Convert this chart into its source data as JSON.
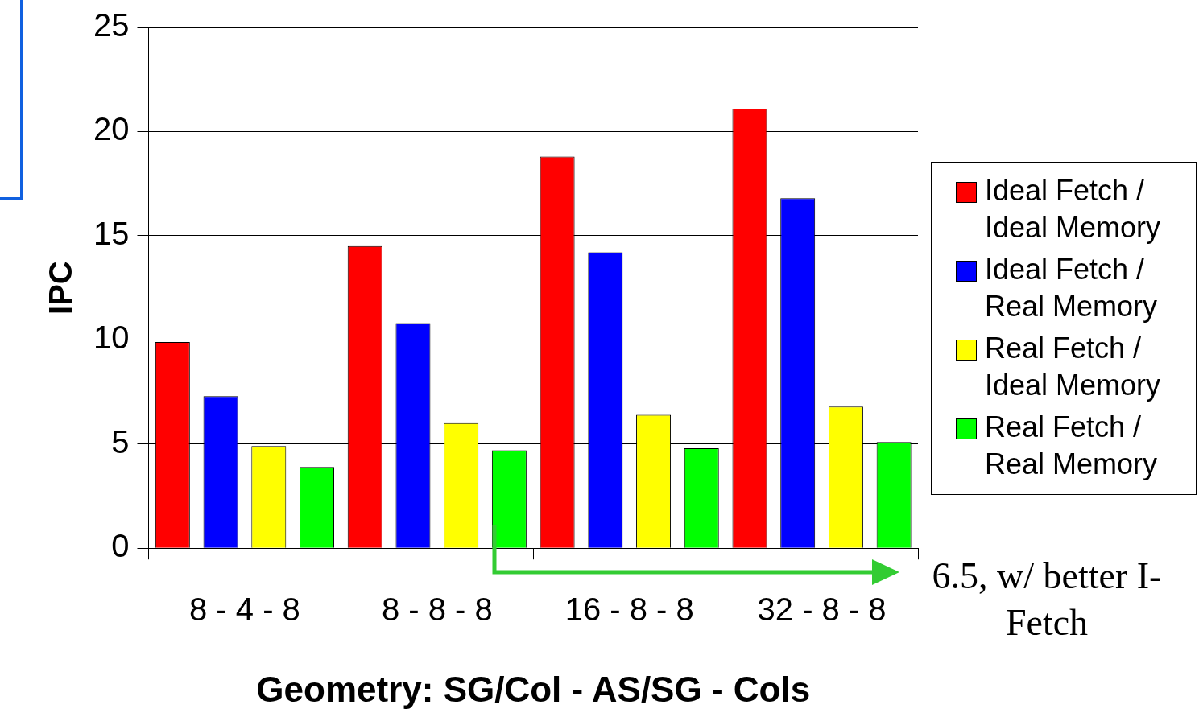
{
  "chart_data": {
    "type": "bar",
    "xlabel": "Geometry: SG/Col - AS/SG - Cols",
    "ylabel": "IPC",
    "categories": [
      "8 - 4 - 8",
      "8 - 8 - 8",
      "16 - 8 - 8",
      "32 - 8 - 8"
    ],
    "series": [
      {
        "name": "Ideal Fetch / Ideal Memory",
        "color": "#ff0000",
        "values": [
          9.9,
          14.5,
          18.8,
          21.1
        ]
      },
      {
        "name": "Ideal Fetch / Real Memory",
        "color": "#0000ff",
        "values": [
          7.3,
          10.8,
          14.2,
          16.8
        ]
      },
      {
        "name": "Real Fetch / Ideal Memory",
        "color": "#ffff00",
        "values": [
          4.9,
          6.0,
          6.4,
          6.8
        ]
      },
      {
        "name": "Real Fetch / Real Memory",
        "color": "#00ff00",
        "values": [
          3.9,
          4.7,
          4.8,
          5.1
        ]
      }
    ],
    "ylim": [
      0,
      25
    ],
    "yticks": [
      0,
      5,
      10,
      15,
      20,
      25
    ],
    "grid": "y",
    "legend": "right",
    "annotations": [
      "6.5, w/ better I-Fetch"
    ]
  }
}
